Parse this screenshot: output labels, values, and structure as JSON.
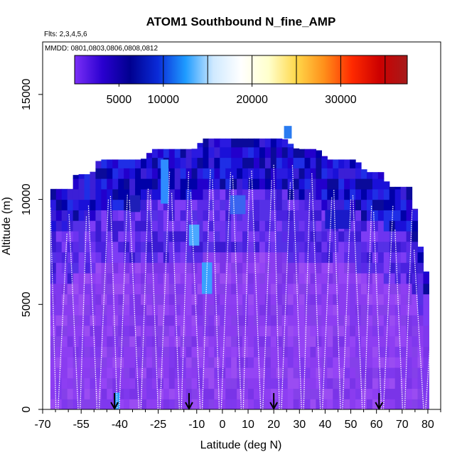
{
  "chart_data": {
    "type": "heatmap",
    "title": "ATOM1 Southbound N_fine_AMP",
    "subtitle_flights": "Flts: 2,3,4,5,6",
    "subtitle_dates": "MMDD: 0801,0803,0806,0808,0812",
    "xlabel": "Latitude (deg N)",
    "ylabel": "Altitude (m)",
    "xlim": [
      -70,
      85
    ],
    "ylim": [
      0,
      17500
    ],
    "x_ticks": [
      -70,
      -55,
      -40,
      -25,
      -10,
      0,
      10,
      20,
      30,
      40,
      50,
      60,
      70,
      80
    ],
    "x_tick_labels": [
      "-70",
      "-55",
      "-40",
      "-25",
      "-10",
      "0",
      "10",
      "20",
      "30",
      "40",
      "50",
      "60",
      "70",
      "80"
    ],
    "y_ticks": [
      0,
      5000,
      10000,
      15000
    ],
    "y_tick_labels": [
      "0",
      "5000",
      "10000",
      "15000"
    ],
    "colorbar": {
      "range": [
        0,
        37500
      ],
      "tick_values": [
        5000,
        10000,
        20000,
        30000
      ],
      "tick_labels": [
        "5000",
        "10000",
        "20000",
        "30000"
      ],
      "divider_values": [
        10000,
        15000,
        20000,
        25000,
        30000,
        35000
      ],
      "gradient_colors": [
        "#7b2ff7",
        "#2a00d0",
        "#00008f",
        "#0a2bd8",
        "#1e9bff",
        "#cfe9ff",
        "#ffffff",
        "#ffffcc",
        "#ffd84a",
        "#ff8f1a",
        "#ff2a00",
        "#cc0000",
        "#a61b1b"
      ]
    },
    "outline_envelope": [
      [
        -67,
        10500
      ],
      [
        -59,
        10500
      ],
      [
        -57,
        11200
      ],
      [
        -51,
        11200
      ],
      [
        -48,
        11900
      ],
      [
        -31,
        11900
      ],
      [
        -27,
        12400
      ],
      [
        -11,
        12400
      ],
      [
        -7,
        12900
      ],
      [
        24,
        12900
      ],
      [
        29,
        12400
      ],
      [
        37,
        12400
      ],
      [
        41,
        11900
      ],
      [
        52,
        11900
      ],
      [
        56,
        11300
      ],
      [
        62,
        11300
      ],
      [
        65,
        10600
      ],
      [
        73,
        10600
      ],
      [
        75,
        9500
      ],
      [
        78,
        7000
      ],
      [
        81,
        6000
      ],
      [
        81,
        0
      ],
      [
        -67,
        0
      ]
    ],
    "arrow_latitudes": [
      -42,
      -13,
      20,
      61
    ],
    "plot_colors": {
      "background_fill": "#8a3cf0",
      "upper_fill": "#3a1fd8",
      "profile_line": "#ffffff"
    }
  }
}
